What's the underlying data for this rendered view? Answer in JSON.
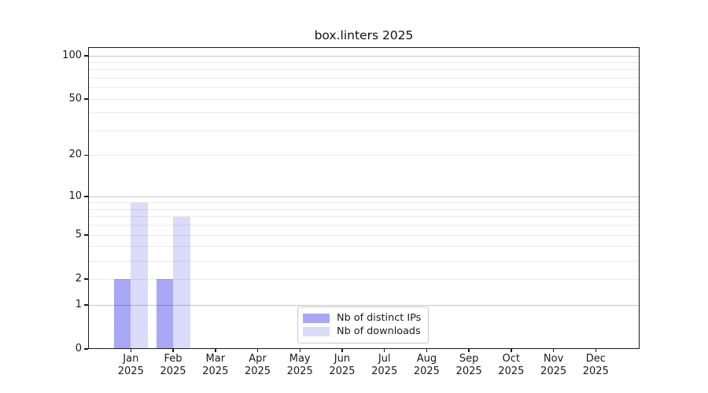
{
  "title": "box.linters 2025",
  "chart_data": {
    "type": "bar",
    "title": "box.linters 2025",
    "categories": [
      "Jan 2025",
      "Feb 2025",
      "Mar 2025",
      "Apr 2025",
      "May 2025",
      "Jun 2025",
      "Jul 2025",
      "Aug 2025",
      "Sep 2025",
      "Oct 2025",
      "Nov 2025",
      "Dec 2025"
    ],
    "series": [
      {
        "name": "Nb of distinct IPs",
        "color": "#a8a8f6",
        "values": [
          2,
          2,
          0,
          0,
          0,
          0,
          0,
          0,
          0,
          0,
          0,
          0
        ]
      },
      {
        "name": "Nb of downloads",
        "color": "#dbdbfa",
        "values": [
          9,
          7,
          0,
          0,
          0,
          0,
          0,
          0,
          0,
          0,
          0,
          0
        ]
      }
    ],
    "xlabel": "",
    "ylabel": "",
    "yscale": "log1p",
    "ylim": [
      0,
      112.6
    ],
    "yticks": [
      0,
      1,
      2,
      5,
      10,
      20,
      50,
      100
    ],
    "major_grid_values": [
      1,
      10,
      100
    ],
    "minor_grid_values": [
      2,
      3,
      4,
      5,
      6,
      7,
      8,
      9,
      20,
      30,
      40,
      50,
      60,
      70,
      80,
      90
    ],
    "grid": true,
    "legend_position": "lower center"
  },
  "legend": {
    "items": [
      {
        "label": "Nb of distinct IPs",
        "swatch": "ips-swatch"
      },
      {
        "label": "Nb of downloads",
        "swatch": "downloads-swatch"
      }
    ]
  },
  "colors": {
    "distinct_ips_bar": "#a8a8f6",
    "downloads_bar": "#dbdbfa",
    "major_gridline": "#c7c7c7",
    "minor_gridline": "#ebebeb",
    "axis_spine": "#1a1a1a",
    "background": "#ffffff"
  }
}
